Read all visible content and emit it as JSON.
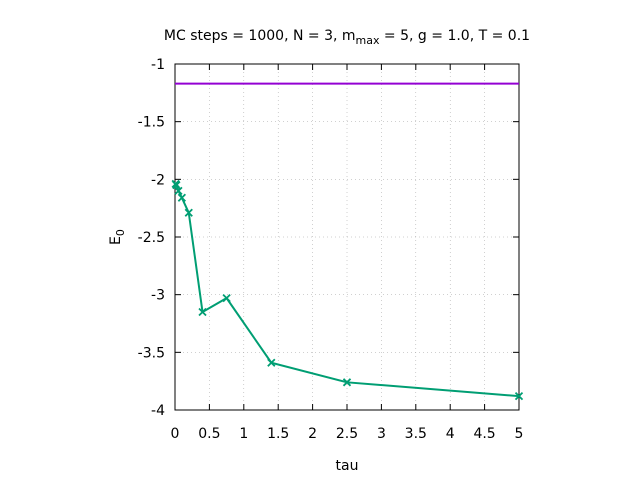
{
  "chart_data": {
    "type": "line",
    "title": {
      "prefix": "MC steps = 1000, N = 3, m",
      "subscript": "max",
      "suffix": " = 5, g = 1.0, T = 0.1"
    },
    "xlabel": "tau",
    "ylabel": {
      "base": "E",
      "subscript": "0"
    },
    "xlim": [
      0,
      5
    ],
    "ylim": [
      -4,
      -1
    ],
    "x_ticks": [
      0,
      0.5,
      1,
      1.5,
      2,
      2.5,
      3,
      3.5,
      4,
      4.5,
      5
    ],
    "x_tick_labels": [
      "0",
      "0.5",
      "1",
      "1.5",
      "2",
      "2.5",
      "3",
      "3.5",
      "4",
      "4.5",
      "5"
    ],
    "y_ticks": [
      -4,
      -3.5,
      -3,
      -2.5,
      -2,
      -1.5,
      -1
    ],
    "y_tick_labels": [
      "-4",
      "-3.5",
      "-3",
      "-2.5",
      "-2",
      "-1.5",
      "-1"
    ],
    "grid": true,
    "series": [
      {
        "style": "line",
        "color": "#9400d3",
        "x": [
          0,
          5
        ],
        "y": [
          -1.17,
          -1.17
        ]
      },
      {
        "style": "linespoints",
        "marker": "x",
        "color": "#009e73",
        "x": [
          0.01,
          0.02,
          0.05,
          0.1,
          0.2,
          0.4,
          0.75,
          1.4,
          2.5,
          5.0
        ],
        "y": [
          -2.04,
          -2.05,
          -2.1,
          -2.16,
          -2.29,
          -3.15,
          -3.03,
          -3.59,
          -3.76,
          -3.88
        ]
      }
    ]
  }
}
